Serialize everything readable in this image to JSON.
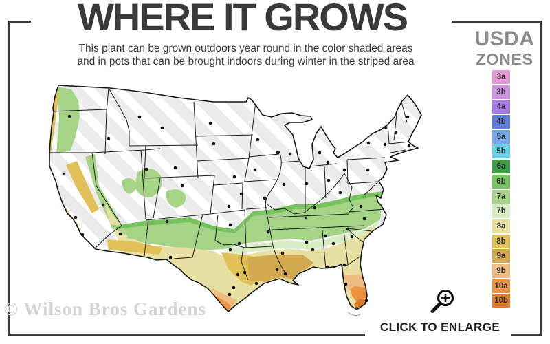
{
  "header": {
    "title": "WHERE IT GROWS",
    "subtitle_line1": "This plant can be grown outdoors year round in the color shaded areas",
    "subtitle_line2": "and in pots that can be brought indoors during winter in the striped area"
  },
  "legend": {
    "title_line1": "USDA",
    "title_line2": "ZONES",
    "zones": [
      {
        "label": "3a",
        "color": "#e39bd5"
      },
      {
        "label": "3b",
        "color": "#cf94de"
      },
      {
        "label": "4a",
        "color": "#a87ae3"
      },
      {
        "label": "4b",
        "color": "#5f7cd8"
      },
      {
        "label": "5a",
        "color": "#77a5e6"
      },
      {
        "label": "5b",
        "color": "#67d0e2"
      },
      {
        "label": "6a",
        "color": "#3f9e44"
      },
      {
        "label": "6b",
        "color": "#77c25e"
      },
      {
        "label": "7a",
        "color": "#a5d487"
      },
      {
        "label": "7b",
        "color": "#d9edc3"
      },
      {
        "label": "8a",
        "color": "#e8e0a2"
      },
      {
        "label": "8b",
        "color": "#e0c057"
      },
      {
        "label": "9a",
        "color": "#d2a94e"
      },
      {
        "label": "9b",
        "color": "#edbd84"
      },
      {
        "label": "10a",
        "color": "#ec9340"
      },
      {
        "label": "10b",
        "color": "#dd7b2e"
      }
    ]
  },
  "map": {
    "base_color": "#ececec",
    "stripe_color": "#ffffff",
    "state_line_color": "#1b1b1b",
    "outline_color": "#141414",
    "dot_color": "#111111",
    "city_dots": [
      [
        41,
        57
      ],
      [
        33,
        141
      ],
      [
        50,
        204
      ],
      [
        60,
        229
      ],
      [
        90,
        186
      ],
      [
        98,
        89
      ],
      [
        153,
        134
      ],
      [
        143,
        58
      ],
      [
        176,
        74
      ],
      [
        246,
        67
      ],
      [
        251,
        97
      ],
      [
        315,
        91
      ],
      [
        344,
        110
      ],
      [
        362,
        112
      ],
      [
        405,
        110
      ],
      [
        417,
        124
      ],
      [
        311,
        135
      ],
      [
        281,
        145
      ],
      [
        195,
        132
      ],
      [
        205,
        158
      ],
      [
        291,
        170
      ],
      [
        273,
        188
      ],
      [
        325,
        176
      ],
      [
        353,
        156
      ],
      [
        386,
        155
      ],
      [
        418,
        150
      ],
      [
        441,
        135
      ],
      [
        475,
        135
      ],
      [
        476,
        96
      ],
      [
        500,
        98
      ],
      [
        501,
        73
      ],
      [
        516,
        81
      ],
      [
        533,
        58
      ],
      [
        535,
        100
      ],
      [
        435,
        168
      ],
      [
        465,
        188
      ],
      [
        470,
        206
      ],
      [
        446,
        221
      ],
      [
        452,
        232
      ],
      [
        413,
        231
      ],
      [
        425,
        242
      ],
      [
        385,
        205
      ],
      [
        398,
        190
      ],
      [
        330,
        225
      ],
      [
        351,
        256
      ],
      [
        386,
        240
      ],
      [
        395,
        251
      ],
      [
        416,
        276
      ],
      [
        441,
        273
      ],
      [
        443,
        301
      ],
      [
        473,
        325
      ],
      [
        343,
        280
      ],
      [
        355,
        286
      ],
      [
        275,
        215
      ],
      [
        275,
        251
      ],
      [
        288,
        242
      ],
      [
        286,
        287
      ],
      [
        296,
        284
      ],
      [
        313,
        300
      ],
      [
        280,
        306
      ],
      [
        274,
        316
      ],
      [
        188,
        262
      ],
      [
        183,
        210
      ],
      [
        115,
        228
      ]
    ]
  },
  "watermark": {
    "text": "© Wilson Bros Gardens"
  },
  "enlarge": {
    "label": "CLICK TO ENLARGE"
  },
  "frame": {
    "color": "#3d3d3d"
  }
}
